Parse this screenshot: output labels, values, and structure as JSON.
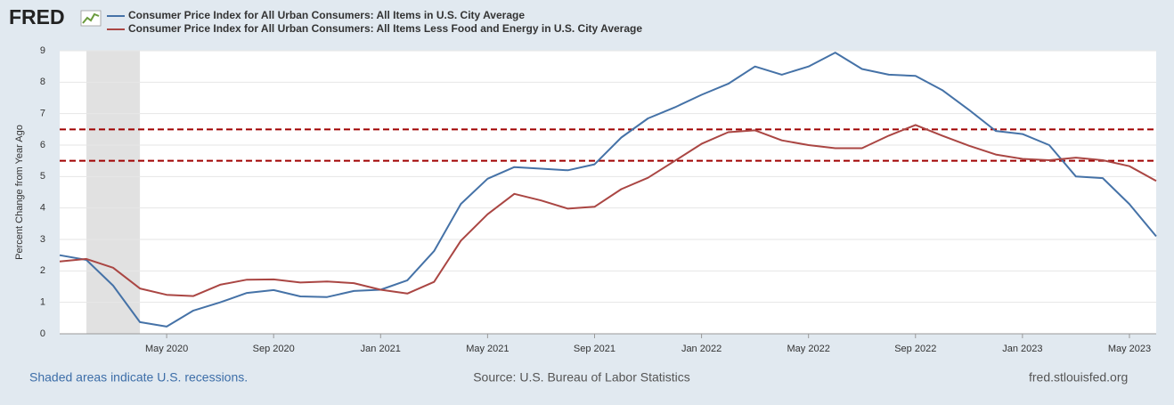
{
  "logo": "FRED",
  "footer": {
    "note": "Shaded areas indicate U.S. recessions.",
    "source": "Source: U.S. Bureau of Labor Statistics",
    "site": "fred.stlouisfed.org"
  },
  "chart_data": {
    "type": "line",
    "y_label": "Percent Change from Year Ago",
    "categories": [
      null,
      null,
      null,
      null,
      "May 2020",
      null,
      null,
      null,
      "Sep 2020",
      null,
      null,
      null,
      "Jan 2021",
      null,
      null,
      null,
      "May 2021",
      null,
      null,
      null,
      "Sep 2021",
      null,
      null,
      null,
      "Jan 2022",
      null,
      null,
      null,
      "May 2022",
      null,
      null,
      null,
      "Sep 2022",
      null,
      null,
      null,
      "Jan 2023",
      null,
      null,
      null,
      "May 2023",
      null
    ],
    "series": [
      {
        "name": "Consumer Price Index for All Urban Consumers: All Items in U.S. City Average",
        "color": "#4572a7",
        "values": [
          2.5,
          2.35,
          1.53,
          0.37,
          0.23,
          0.74,
          1.0,
          1.3,
          1.39,
          1.19,
          1.17,
          1.36,
          1.4,
          1.7,
          2.63,
          4.13,
          4.93,
          5.3,
          5.25,
          5.2,
          5.39,
          6.24,
          6.85,
          7.2,
          7.6,
          7.95,
          8.5,
          8.24,
          8.5,
          8.94,
          8.42,
          8.24,
          8.2,
          7.75,
          7.12,
          6.45,
          6.35,
          6.0,
          5.0,
          4.95,
          4.12,
          3.1
        ]
      },
      {
        "name": "Consumer Price Index for All Urban Consumers: All Items Less Food and Energy in U.S. City Average",
        "color": "#aa4643",
        "values": [
          2.3,
          2.38,
          2.1,
          1.44,
          1.24,
          1.2,
          1.56,
          1.72,
          1.73,
          1.63,
          1.66,
          1.61,
          1.4,
          1.28,
          1.65,
          2.96,
          3.8,
          4.45,
          4.24,
          3.98,
          4.04,
          4.6,
          4.96,
          5.5,
          6.04,
          6.41,
          6.47,
          6.15,
          6.0,
          5.9,
          5.9,
          6.3,
          6.64,
          6.3,
          5.98,
          5.7,
          5.56,
          5.52,
          5.6,
          5.52,
          5.33,
          4.86
        ]
      }
    ],
    "reference_lines": [
      6.5,
      5.5
    ],
    "reference_color": "#a00000",
    "shaded_range": [
      1,
      3
    ],
    "shade_color": "#e1e1e1",
    "ylim": [
      0,
      9
    ],
    "yticks": [
      0,
      1,
      2,
      3,
      4,
      5,
      6,
      7,
      8,
      9
    ],
    "grid": true
  }
}
